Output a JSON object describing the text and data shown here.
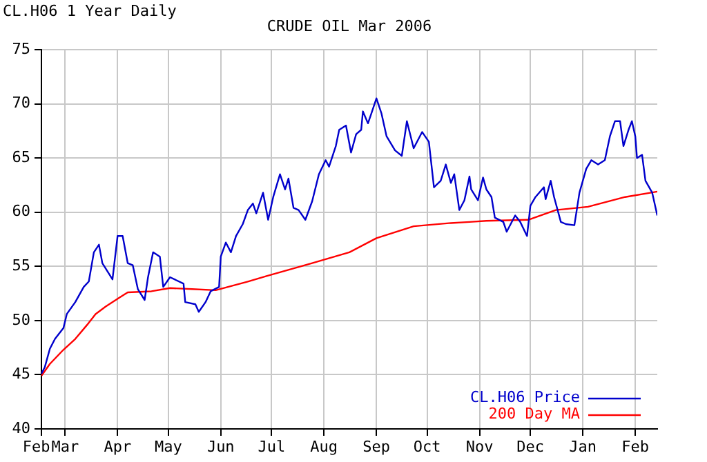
{
  "chart_data": {
    "type": "line",
    "title": "CRUDE OIL Mar 2006",
    "subtitle": "CL.H06 1 Year Daily",
    "xlim": [
      "2005-02-15",
      "2006-02-14"
    ],
    "xticks": [
      {
        "value": "2005-02-15",
        "label": "Feb"
      },
      {
        "value": "2005-03-01",
        "label": "Mar"
      },
      {
        "value": "2005-04-01",
        "label": "Apr"
      },
      {
        "value": "2005-05-01",
        "label": "May"
      },
      {
        "value": "2005-06-01",
        "label": "Jun"
      },
      {
        "value": "2005-07-01",
        "label": "Jul"
      },
      {
        "value": "2005-08-01",
        "label": "Aug"
      },
      {
        "value": "2005-09-01",
        "label": "Sep"
      },
      {
        "value": "2005-10-01",
        "label": "Oct"
      },
      {
        "value": "2005-11-01",
        "label": "Nov"
      },
      {
        "value": "2005-12-01",
        "label": "Dec"
      },
      {
        "value": "2006-01-01",
        "label": "Jan"
      },
      {
        "value": "2006-02-01",
        "label": "Feb"
      }
    ],
    "ylim": [
      40,
      75
    ],
    "yticks": [
      40,
      45,
      50,
      55,
      60,
      65,
      70,
      75
    ],
    "grid": true,
    "legend": "bottom right",
    "marker": "none",
    "line_style": "solid",
    "series": [
      {
        "name": "CL.H06 Price",
        "color": "#0000cc",
        "x": [
          "2005-02-15",
          "2005-02-17",
          "2005-02-20",
          "2005-02-23",
          "2005-02-28",
          "2005-03-02",
          "2005-03-07",
          "2005-03-12",
          "2005-03-15",
          "2005-03-18",
          "2005-03-21",
          "2005-03-23",
          "2005-03-29",
          "2005-04-01",
          "2005-04-04",
          "2005-04-07",
          "2005-04-10",
          "2005-04-13",
          "2005-04-17",
          "2005-04-19",
          "2005-04-22",
          "2005-04-26",
          "2005-04-28",
          "2005-05-02",
          "2005-05-10",
          "2005-05-11",
          "2005-05-17",
          "2005-05-19",
          "2005-05-23",
          "2005-05-26",
          "2005-05-31",
          "2005-06-01",
          "2005-06-04",
          "2005-06-07",
          "2005-06-10",
          "2005-06-14",
          "2005-06-17",
          "2005-06-20",
          "2005-06-22",
          "2005-06-26",
          "2005-06-29",
          "2005-07-02",
          "2005-07-06",
          "2005-07-09",
          "2005-07-11",
          "2005-07-14",
          "2005-07-17",
          "2005-07-21",
          "2005-07-25",
          "2005-07-29",
          "2005-08-02",
          "2005-08-04",
          "2005-08-08",
          "2005-08-10",
          "2005-08-14",
          "2005-08-17",
          "2005-08-20",
          "2005-08-23",
          "2005-08-24",
          "2005-08-27",
          "2005-08-29",
          "2005-09-01",
          "2005-09-04",
          "2005-09-07",
          "2005-09-12",
          "2005-09-16",
          "2005-09-19",
          "2005-09-23",
          "2005-09-28",
          "2005-10-02",
          "2005-10-05",
          "2005-10-09",
          "2005-10-12",
          "2005-10-15",
          "2005-10-17",
          "2005-10-20",
          "2005-10-23",
          "2005-10-26",
          "2005-10-27",
          "2005-10-31",
          "2005-11-03",
          "2005-11-05",
          "2005-11-08",
          "2005-11-10",
          "2005-11-15",
          "2005-11-17",
          "2005-11-22",
          "2005-11-25",
          "2005-11-29",
          "2005-12-01",
          "2005-12-04",
          "2005-12-09",
          "2005-12-10",
          "2005-12-13",
          "2005-12-15",
          "2005-12-19",
          "2005-12-22",
          "2005-12-27",
          "2005-12-30",
          "2006-01-03",
          "2006-01-06",
          "2006-01-10",
          "2006-01-14",
          "2006-01-17",
          "2006-01-20",
          "2006-01-23",
          "2006-01-25",
          "2006-01-28",
          "2006-01-30",
          "2006-02-01",
          "2006-02-02",
          "2006-02-05",
          "2006-02-07",
          "2006-02-11",
          "2006-02-13",
          "2006-02-14"
        ],
        "values": [
          45.1,
          45.7,
          47.4,
          48.3,
          49.3,
          50.6,
          51.7,
          53.1,
          53.6,
          56.3,
          57.0,
          55.3,
          53.8,
          57.8,
          57.8,
          55.3,
          55.1,
          52.9,
          51.9,
          54.0,
          56.3,
          55.9,
          53.1,
          54.0,
          53.4,
          51.7,
          51.5,
          50.8,
          51.7,
          52.7,
          53.1,
          55.9,
          57.2,
          56.3,
          57.8,
          58.9,
          60.2,
          60.8,
          59.9,
          61.8,
          59.3,
          61.4,
          63.5,
          62.1,
          63.1,
          60.4,
          60.2,
          59.3,
          61.0,
          63.5,
          64.8,
          64.2,
          66.1,
          67.6,
          68.0,
          65.5,
          67.2,
          67.6,
          69.3,
          68.2,
          69.1,
          70.5,
          69.1,
          67.0,
          65.7,
          65.2,
          68.4,
          65.9,
          67.4,
          66.5,
          62.3,
          62.9,
          64.4,
          62.7,
          63.5,
          60.2,
          61.1,
          63.3,
          62.1,
          61.1,
          63.2,
          62.1,
          61.4,
          59.5,
          59.1,
          58.2,
          59.7,
          59.1,
          57.8,
          60.6,
          61.4,
          62.3,
          61.2,
          62.9,
          61.4,
          59.1,
          58.9,
          58.8,
          61.8,
          64.0,
          64.8,
          64.4,
          64.8,
          67.0,
          68.4,
          68.4,
          66.1,
          67.6,
          68.4,
          67.0,
          65.0,
          65.3,
          62.9,
          61.8,
          60.4,
          59.7
        ]
      },
      {
        "name": "200 Day MA",
        "color": "#ff0000",
        "x": [
          "2005-02-15",
          "2005-02-20",
          "2005-02-28",
          "2005-03-07",
          "2005-03-14",
          "2005-03-19",
          "2005-03-25",
          "2005-04-02",
          "2005-04-07",
          "2005-04-21",
          "2005-05-02",
          "2005-05-15",
          "2005-05-29",
          "2005-06-17",
          "2005-06-28",
          "2005-07-25",
          "2005-08-16",
          "2005-09-01",
          "2005-09-23",
          "2005-10-15",
          "2005-10-26",
          "2005-11-05",
          "2005-11-30",
          "2005-12-16",
          "2006-01-04",
          "2006-01-26",
          "2006-02-14"
        ],
        "values": [
          44.9,
          46.0,
          47.3,
          48.3,
          49.6,
          50.6,
          51.3,
          52.1,
          52.6,
          52.7,
          53.0,
          52.9,
          52.8,
          53.6,
          54.1,
          55.3,
          56.3,
          57.6,
          58.7,
          59.0,
          59.1,
          59.2,
          59.3,
          60.2,
          60.5,
          61.4,
          61.9
        ]
      }
    ]
  }
}
